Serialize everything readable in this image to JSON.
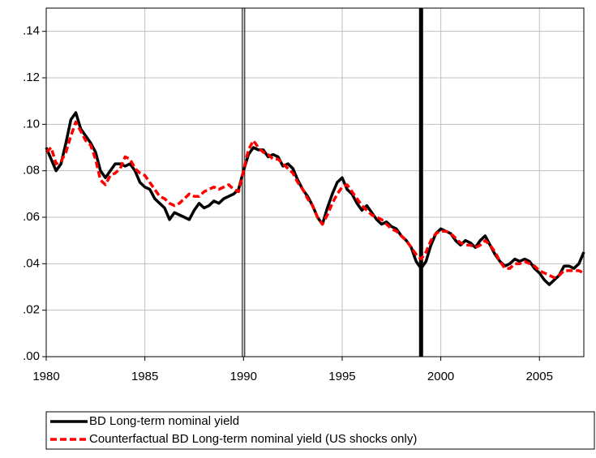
{
  "chart_data": {
    "type": "line",
    "x": [
      1980,
      1980.25,
      1980.5,
      1980.75,
      1981,
      1981.25,
      1981.5,
      1981.75,
      1982,
      1982.25,
      1982.5,
      1982.75,
      1983,
      1983.25,
      1983.5,
      1983.75,
      1984,
      1984.25,
      1984.5,
      1984.75,
      1985,
      1985.25,
      1985.5,
      1985.75,
      1986,
      1986.25,
      1986.5,
      1986.75,
      1987,
      1987.25,
      1987.5,
      1987.75,
      1988,
      1988.25,
      1988.5,
      1988.75,
      1989,
      1989.25,
      1989.5,
      1989.75,
      1990,
      1990.25,
      1990.5,
      1990.75,
      1991,
      1991.25,
      1991.5,
      1991.75,
      1992,
      1992.25,
      1992.5,
      1992.75,
      1993,
      1993.25,
      1993.5,
      1993.75,
      1994,
      1994.25,
      1994.5,
      1994.75,
      1995,
      1995.25,
      1995.5,
      1995.75,
      1996,
      1996.25,
      1996.5,
      1996.75,
      1997,
      1997.25,
      1997.5,
      1997.75,
      1998,
      1998.25,
      1998.5,
      1998.75,
      1999,
      1999.25,
      1999.5,
      1999.75,
      2000,
      2000.25,
      2000.5,
      2000.75,
      2001,
      2001.25,
      2001.5,
      2001.75,
      2002,
      2002.25,
      2002.5,
      2002.75,
      2003,
      2003.25,
      2003.5,
      2003.75,
      2004,
      2004.25,
      2004.5,
      2004.75,
      2005,
      2005.25,
      2005.5,
      2005.75,
      2006,
      2006.25,
      2006.5,
      2006.75,
      2007,
      2007.25
    ],
    "series": [
      {
        "name": "BD Long-term nominal yield",
        "color": "#000000",
        "dash": false,
        "values": [
          0.09,
          0.085,
          0.08,
          0.083,
          0.092,
          0.102,
          0.105,
          0.098,
          0.095,
          0.092,
          0.088,
          0.08,
          0.077,
          0.08,
          0.083,
          0.083,
          0.082,
          0.083,
          0.08,
          0.075,
          0.073,
          0.072,
          0.068,
          0.066,
          0.064,
          0.059,
          0.062,
          0.061,
          0.06,
          0.059,
          0.063,
          0.066,
          0.064,
          0.065,
          0.067,
          0.066,
          0.068,
          0.069,
          0.07,
          0.072,
          0.08,
          0.087,
          0.09,
          0.089,
          0.089,
          0.086,
          0.087,
          0.086,
          0.082,
          0.083,
          0.081,
          0.076,
          0.072,
          0.069,
          0.065,
          0.06,
          0.057,
          0.064,
          0.07,
          0.075,
          0.077,
          0.072,
          0.07,
          0.066,
          0.063,
          0.065,
          0.062,
          0.059,
          0.057,
          0.058,
          0.056,
          0.055,
          0.052,
          0.05,
          0.047,
          0.041,
          0.038,
          0.041,
          0.048,
          0.053,
          0.055,
          0.054,
          0.053,
          0.05,
          0.048,
          0.05,
          0.049,
          0.047,
          0.05,
          0.052,
          0.048,
          0.044,
          0.041,
          0.039,
          0.04,
          0.042,
          0.041,
          0.042,
          0.041,
          0.038,
          0.036,
          0.033,
          0.031,
          0.033,
          0.035,
          0.039,
          0.039,
          0.038,
          0.04,
          0.045
        ]
      },
      {
        "name": "Counterfactual BD Long-term nominal yield (US shocks only)",
        "color": "#ff0000",
        "dash": true,
        "values": [
          0.088,
          0.09,
          0.083,
          0.084,
          0.088,
          0.095,
          0.101,
          0.097,
          0.093,
          0.091,
          0.085,
          0.076,
          0.074,
          0.078,
          0.079,
          0.081,
          0.086,
          0.085,
          0.081,
          0.079,
          0.078,
          0.075,
          0.072,
          0.069,
          0.068,
          0.066,
          0.065,
          0.066,
          0.068,
          0.07,
          0.069,
          0.069,
          0.071,
          0.072,
          0.073,
          0.072,
          0.073,
          0.074,
          0.072,
          0.071,
          0.08,
          0.089,
          0.093,
          0.09,
          0.088,
          0.087,
          0.085,
          0.085,
          0.083,
          0.081,
          0.079,
          0.075,
          0.072,
          0.068,
          0.065,
          0.06,
          0.057,
          0.061,
          0.066,
          0.07,
          0.073,
          0.074,
          0.071,
          0.068,
          0.065,
          0.063,
          0.061,
          0.06,
          0.059,
          0.057,
          0.055,
          0.054,
          0.052,
          0.05,
          0.047,
          0.044,
          0.042,
          0.045,
          0.05,
          0.053,
          0.054,
          0.054,
          0.053,
          0.051,
          0.049,
          0.048,
          0.048,
          0.047,
          0.048,
          0.05,
          0.048,
          0.045,
          0.041,
          0.038,
          0.038,
          0.04,
          0.04,
          0.041,
          0.04,
          0.039,
          0.037,
          0.036,
          0.035,
          0.034,
          0.035,
          0.037,
          0.037,
          0.037,
          0.037,
          0.036
        ]
      }
    ],
    "xlim": [
      1980,
      2007.25
    ],
    "xticks": [
      1980,
      1985,
      1990,
      1995,
      2000,
      2005
    ],
    "ylim": [
      0,
      0.15
    ],
    "yticks": [
      {
        "value": 0,
        "label": ".00"
      },
      {
        "value": 0.02,
        "label": ".02"
      },
      {
        "value": 0.04,
        "label": ".04"
      },
      {
        "value": 0.06,
        "label": ".06"
      },
      {
        "value": 0.08,
        "label": ".08"
      },
      {
        "value": 0.1,
        "label": ".10"
      },
      {
        "value": 0.12,
        "label": ".12"
      },
      {
        "value": 0.14,
        "label": ".14"
      }
    ],
    "grid": true,
    "legend": "bottom",
    "vertical_lines": [
      {
        "x": 1990,
        "style": "double"
      },
      {
        "x": 1999,
        "style": "thick"
      }
    ]
  }
}
